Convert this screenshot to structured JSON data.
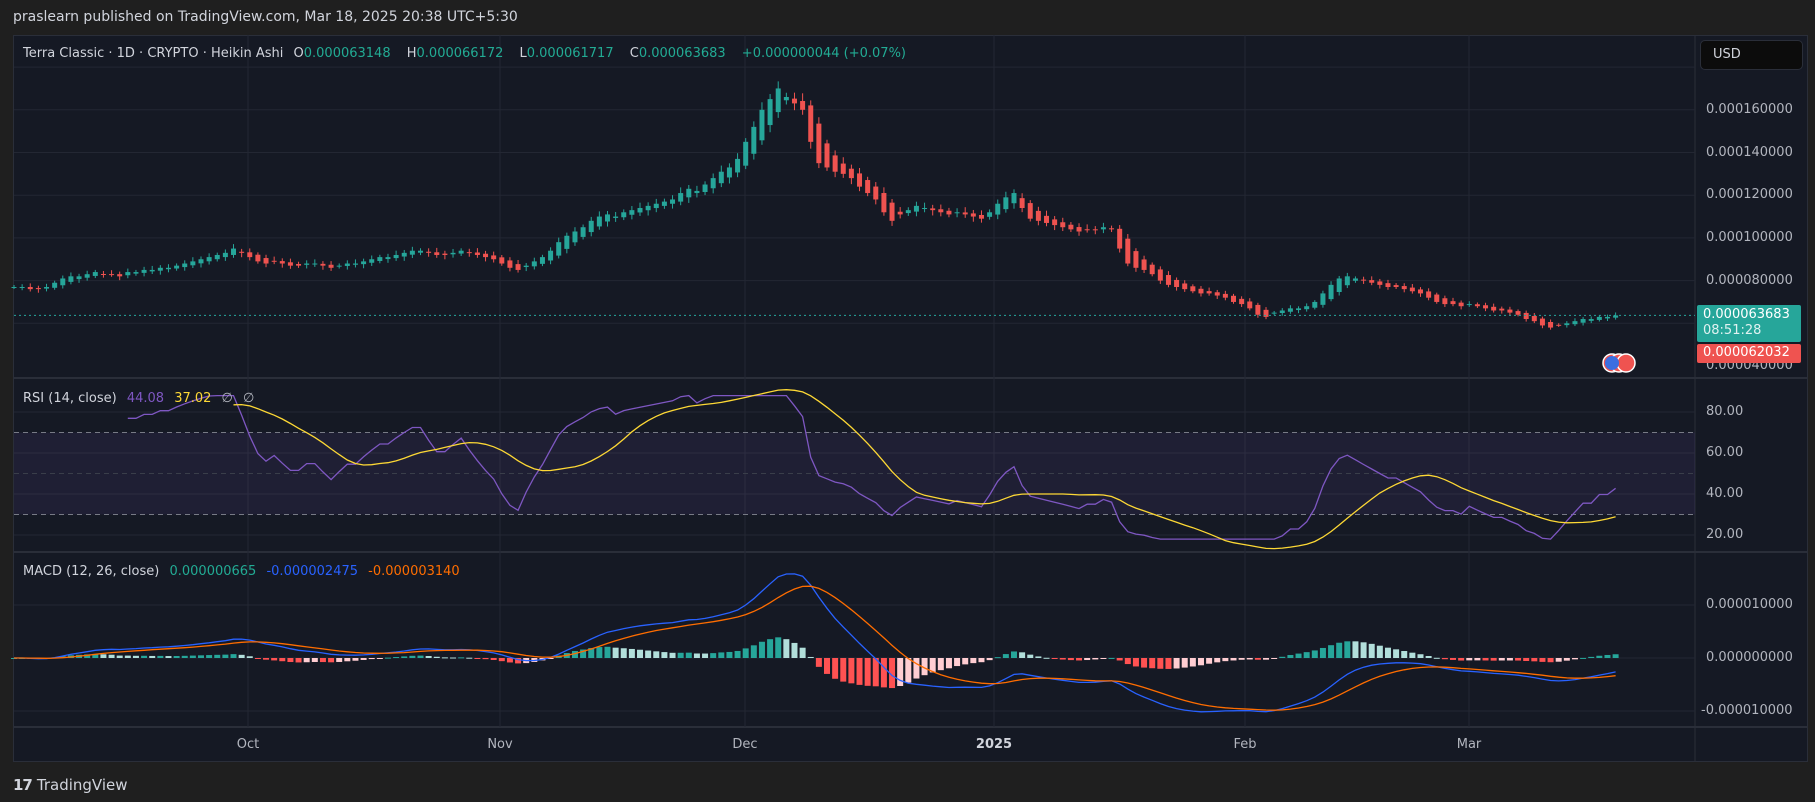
{
  "publisher_line": "praslearn published on TradingView.com, Mar 18, 2025 20:38 UTC+5:30",
  "header": {
    "symbol": "Terra Classic · 1D · CRYPTO · Heikin Ashi",
    "o_label": "O",
    "o": "0.000063148",
    "h_label": "H",
    "h": "0.000066172",
    "l_label": "L",
    "l": "0.000061717",
    "c_label": "C",
    "c": "0.000063683",
    "change": "+0.000000044 (+0.07%)"
  },
  "currency_button": "USD",
  "price_axis": [
    "0.000160000",
    "0.000140000",
    "0.000120000",
    "0.000100000",
    "0.000080000",
    "0.000040000"
  ],
  "last_price": {
    "value": "0.000063683",
    "countdown": "08:51:28"
  },
  "prev_close_label": "0.000062032",
  "rsi": {
    "label": "RSI (14, close)",
    "rsi_value": "44.08",
    "ma_value": "37.02",
    "na1": "∅",
    "na2": "∅",
    "axis": [
      "80.00",
      "60.00",
      "40.00",
      "20.00"
    ]
  },
  "macd": {
    "label": "MACD (12, 26, close)",
    "hist_value": "0.000000665",
    "macd_value": "-0.000002475",
    "signal_value": "-0.000003140",
    "axis": [
      "0.000010000",
      "0.000000000",
      "-0.000010000"
    ]
  },
  "time_axis": [
    {
      "label": "Oct",
      "bold": false
    },
    {
      "label": "Nov",
      "bold": false
    },
    {
      "label": "Dec",
      "bold": false
    },
    {
      "label": "2025",
      "bold": true
    },
    {
      "label": "Feb",
      "bold": false
    },
    {
      "label": "Mar",
      "bold": false
    }
  ],
  "footer_logo": "TradingView",
  "colors": {
    "up": "#26a69a",
    "down": "#ef5350",
    "rsi": "#7e57c2",
    "rsi_ma": "#fdd835",
    "macd": "#2962ff",
    "signal": "#ff6d00"
  },
  "chart_data": {
    "type": "candlestick",
    "title": "Terra Classic · 1D · CRYPTO · Heikin Ashi",
    "x_start": "2024-09-02",
    "x_end": "2025-03-18",
    "interval": "1D",
    "value_unit": "1e-6 USD",
    "ylim": [
      40,
      180
    ],
    "y_ticks": [
      40,
      60,
      80,
      100,
      120,
      140,
      160
    ],
    "last_close": 63.683,
    "prev_close": 62.032,
    "close": [
      77,
      77,
      76,
      76,
      77,
      79,
      81,
      82,
      82,
      83,
      84,
      83,
      83,
      82,
      84,
      84,
      85,
      85,
      86,
      86,
      87,
      88,
      89,
      90,
      91,
      92,
      93,
      95,
      93,
      91,
      89,
      88,
      89,
      88,
      87,
      87,
      88,
      88,
      87,
      86,
      87,
      88,
      88,
      89,
      90,
      91,
      91,
      92,
      93,
      94,
      94,
      93,
      92,
      92,
      93,
      94,
      93,
      92,
      91,
      90,
      88,
      86,
      85,
      87,
      89,
      91,
      94,
      98,
      101,
      103,
      105,
      108,
      110,
      111,
      110,
      112,
      113,
      114,
      115,
      116,
      117,
      118,
      121,
      123,
      122,
      125,
      128,
      131,
      133,
      137,
      145,
      152,
      160,
      165,
      170,
      166,
      163,
      160,
      145,
      135,
      133,
      131,
      130,
      128,
      124,
      121,
      118,
      112,
      108,
      111,
      113,
      115,
      114,
      113,
      112,
      111,
      112,
      111,
      110,
      109,
      112,
      116,
      119,
      121,
      114,
      109,
      108,
      107,
      106,
      105,
      104,
      103,
      104,
      104,
      105,
      104,
      95,
      88,
      86,
      85,
      83,
      80,
      78,
      77,
      76,
      75,
      74,
      74,
      73,
      72,
      70,
      69,
      67,
      64,
      63,
      65,
      66,
      67,
      67,
      68,
      70,
      74,
      78,
      81,
      82,
      81,
      80,
      79,
      78,
      77,
      77,
      76,
      75,
      74,
      72,
      70,
      69,
      69,
      68,
      69,
      68,
      67,
      66,
      66,
      65,
      64,
      62,
      61,
      59,
      58,
      59,
      60,
      61,
      62,
      62,
      63,
      63,
      63.683
    ],
    "rsi_ylim": [
      20,
      85
    ],
    "rsi_bands": [
      70,
      50,
      30
    ],
    "macd_ylim": [
      -13,
      18
    ]
  }
}
